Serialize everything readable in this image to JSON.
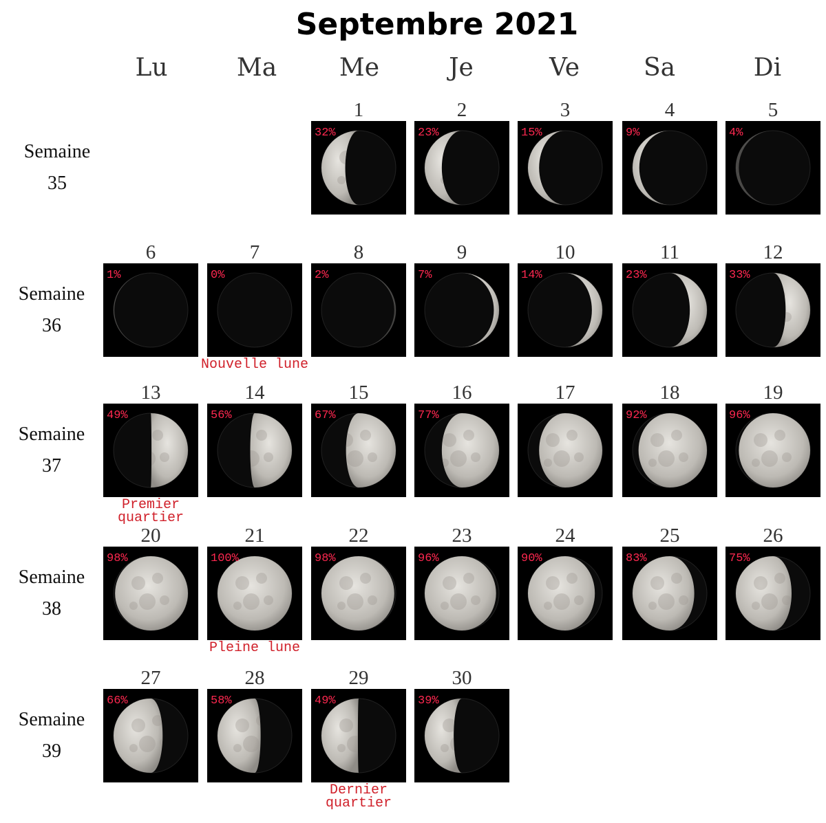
{
  "title": "Septembre 2021",
  "weekdays": [
    "Lu",
    "Ma",
    "Me",
    "Je",
    "Ve",
    "Sa",
    "Di"
  ],
  "weeks": [
    {
      "label": "Semaine",
      "number": "35"
    },
    {
      "label": "Semaine",
      "number": "36"
    },
    {
      "label": "Semaine",
      "number": "37"
    },
    {
      "label": "Semaine",
      "number": "38"
    },
    {
      "label": "Semaine",
      "number": "39"
    }
  ],
  "colors": {
    "percent": "#ff2850",
    "note": "#d0202a"
  },
  "days": [
    {
      "day": "1",
      "week": 0,
      "col": 2,
      "pct": "32%",
      "illumination": 0.32,
      "lit": "left"
    },
    {
      "day": "2",
      "week": 0,
      "col": 3,
      "pct": "23%",
      "illumination": 0.23,
      "lit": "left"
    },
    {
      "day": "3",
      "week": 0,
      "col": 4,
      "pct": "15%",
      "illumination": 0.15,
      "lit": "left"
    },
    {
      "day": "4",
      "week": 0,
      "col": 5,
      "pct": "9%",
      "illumination": 0.09,
      "lit": "left"
    },
    {
      "day": "5",
      "week": 0,
      "col": 6,
      "pct": "4%",
      "illumination": 0.04,
      "lit": "left"
    },
    {
      "day": "6",
      "week": 1,
      "col": 0,
      "pct": "1%",
      "illumination": 0.01,
      "lit": "left"
    },
    {
      "day": "7",
      "week": 1,
      "col": 1,
      "pct": "0%",
      "illumination": 0.0,
      "lit": "right",
      "note": "Nouvelle lune"
    },
    {
      "day": "8",
      "week": 1,
      "col": 2,
      "pct": "2%",
      "illumination": 0.02,
      "lit": "right"
    },
    {
      "day": "9",
      "week": 1,
      "col": 3,
      "pct": "7%",
      "illumination": 0.07,
      "lit": "right"
    },
    {
      "day": "10",
      "week": 1,
      "col": 4,
      "pct": "14%",
      "illumination": 0.14,
      "lit": "right"
    },
    {
      "day": "11",
      "week": 1,
      "col": 5,
      "pct": "23%",
      "illumination": 0.23,
      "lit": "right"
    },
    {
      "day": "12",
      "week": 1,
      "col": 6,
      "pct": "33%",
      "illumination": 0.33,
      "lit": "right"
    },
    {
      "day": "13",
      "week": 2,
      "col": 0,
      "pct": "49%",
      "illumination": 0.49,
      "lit": "right",
      "note": "Premier quartier"
    },
    {
      "day": "14",
      "week": 2,
      "col": 1,
      "pct": "56%",
      "illumination": 0.56,
      "lit": "right"
    },
    {
      "day": "15",
      "week": 2,
      "col": 2,
      "pct": "67%",
      "illumination": 0.67,
      "lit": "right"
    },
    {
      "day": "16",
      "week": 2,
      "col": 3,
      "pct": "77%",
      "illumination": 0.77,
      "lit": "right"
    },
    {
      "day": "17",
      "week": 2,
      "col": 4,
      "pct": "",
      "illumination": 0.85,
      "lit": "right"
    },
    {
      "day": "18",
      "week": 2,
      "col": 5,
      "pct": "92%",
      "illumination": 0.92,
      "lit": "right"
    },
    {
      "day": "19",
      "week": 2,
      "col": 6,
      "pct": "96%",
      "illumination": 0.96,
      "lit": "right"
    },
    {
      "day": "20",
      "week": 3,
      "col": 0,
      "pct": "98%",
      "illumination": 0.98,
      "lit": "right"
    },
    {
      "day": "21",
      "week": 3,
      "col": 1,
      "pct": "100%",
      "illumination": 1.0,
      "lit": "right",
      "note": "Pleine lune"
    },
    {
      "day": "22",
      "week": 3,
      "col": 2,
      "pct": "98%",
      "illumination": 0.98,
      "lit": "left"
    },
    {
      "day": "23",
      "week": 3,
      "col": 3,
      "pct": "96%",
      "illumination": 0.96,
      "lit": "left"
    },
    {
      "day": "24",
      "week": 3,
      "col": 4,
      "pct": "90%",
      "illumination": 0.9,
      "lit": "left"
    },
    {
      "day": "25",
      "week": 3,
      "col": 5,
      "pct": "83%",
      "illumination": 0.83,
      "lit": "left"
    },
    {
      "day": "26",
      "week": 3,
      "col": 6,
      "pct": "75%",
      "illumination": 0.75,
      "lit": "left"
    },
    {
      "day": "27",
      "week": 4,
      "col": 0,
      "pct": "66%",
      "illumination": 0.66,
      "lit": "left"
    },
    {
      "day": "28",
      "week": 4,
      "col": 1,
      "pct": "58%",
      "illumination": 0.58,
      "lit": "left"
    },
    {
      "day": "29",
      "week": 4,
      "col": 2,
      "pct": "49%",
      "illumination": 0.49,
      "lit": "left",
      "note": "Dernier quartier"
    },
    {
      "day": "30",
      "week": 4,
      "col": 3,
      "pct": "39%",
      "illumination": 0.39,
      "lit": "left"
    }
  ]
}
